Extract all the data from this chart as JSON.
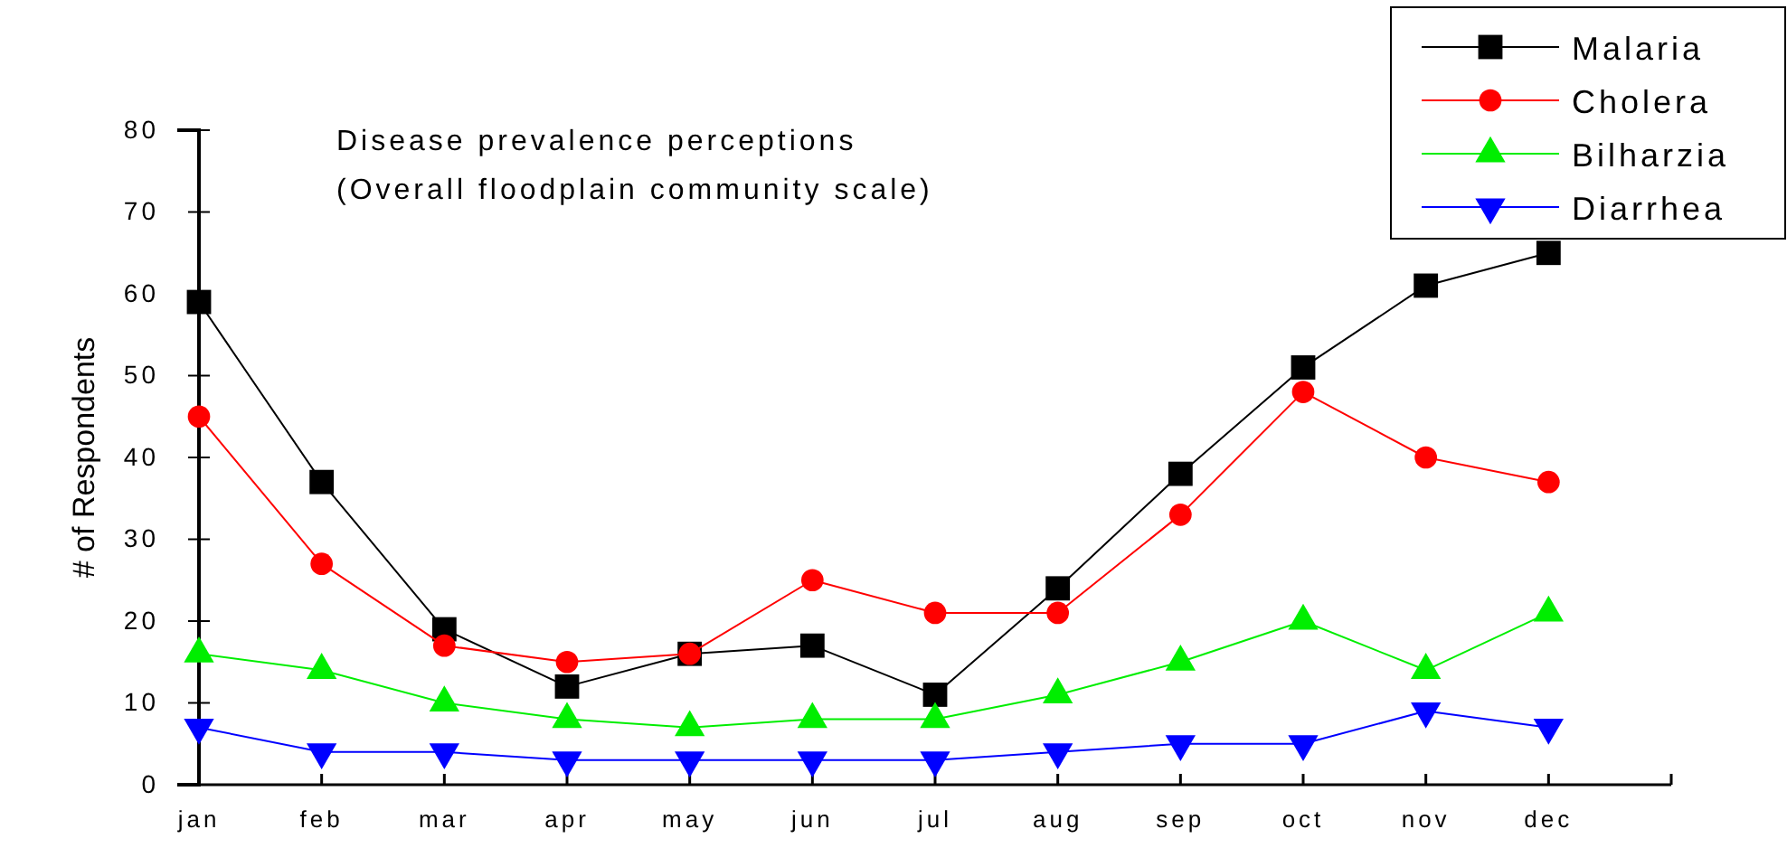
{
  "chart_data": {
    "type": "line",
    "title": "Disease prevalence perceptions",
    "subtitle": "(Overall floodplain community scale)",
    "ylabel": "# of Respondents",
    "categories": [
      "jan",
      "feb",
      "mar",
      "apr",
      "may",
      "jun",
      "jul",
      "aug",
      "sep",
      "oct",
      "nov",
      "dec",
      null
    ],
    "ylim": [
      0,
      80
    ],
    "yticks": [
      0,
      10,
      20,
      30,
      40,
      50,
      60,
      70,
      80
    ],
    "grid": false,
    "legend": "top right",
    "series": [
      {
        "name": "Malaria",
        "color": "#000000",
        "marker": "square",
        "values": [
          59,
          37,
          19,
          12,
          16,
          17,
          11,
          24,
          38,
          51,
          61,
          65,
          null
        ]
      },
      {
        "name": "Cholera",
        "color": "#ff0000",
        "marker": "circle",
        "values": [
          45,
          27,
          17,
          15,
          16,
          25,
          21,
          21,
          33,
          48,
          40,
          37,
          null
        ]
      },
      {
        "name": "Bilharzia",
        "color": "#00ee00",
        "marker": "triangle",
        "values": [
          16,
          14,
          10,
          8,
          7,
          8,
          8,
          11,
          15,
          20,
          14,
          21,
          null
        ]
      },
      {
        "name": "Diarrhea",
        "color": "#0000ff",
        "marker": "triangle-down",
        "values": [
          7,
          4,
          4,
          3,
          3,
          3,
          3,
          4,
          5,
          5,
          9,
          7,
          null
        ]
      }
    ]
  }
}
